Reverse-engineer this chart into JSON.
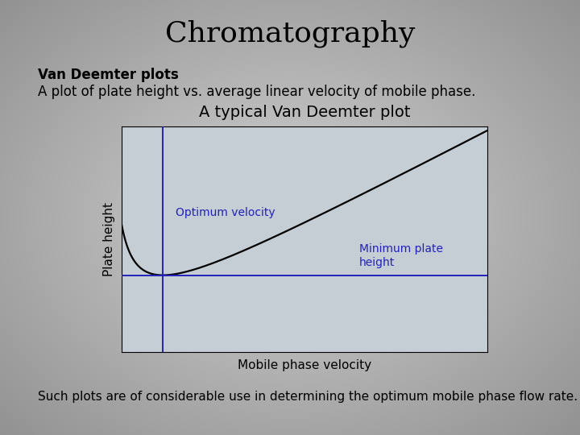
{
  "title": "Chromatography",
  "subtitle_bold": "Van Deemter plots",
  "subtitle_normal": "A plot of plate height vs. average linear velocity of mobile phase.",
  "plot_title": "A typical Van Deemter plot",
  "xlabel": "Mobile phase velocity",
  "ylabel": "Plate height",
  "annotation_1": "Optimum velocity",
  "annotation_2": "Minimum plate\nheight",
  "footer": "Such plots are of considerable use in determining the optimum mobile phase flow rate.",
  "bg_light": "#c8cdd4",
  "bg_dark": "#8e9499",
  "plot_bg_color": "#c5cdd5",
  "title_fontsize": 26,
  "subtitle_fontsize": 12,
  "plot_title_fontsize": 14,
  "axis_label_fontsize": 11,
  "annotation_fontsize": 10,
  "footer_fontsize": 11,
  "curve_color": "#000000",
  "annotation_color": "#2222bb",
  "line_color": "#2222bb",
  "van_deemter_A": 0.05,
  "van_deemter_B": 0.012,
  "van_deemter_C": 0.9
}
